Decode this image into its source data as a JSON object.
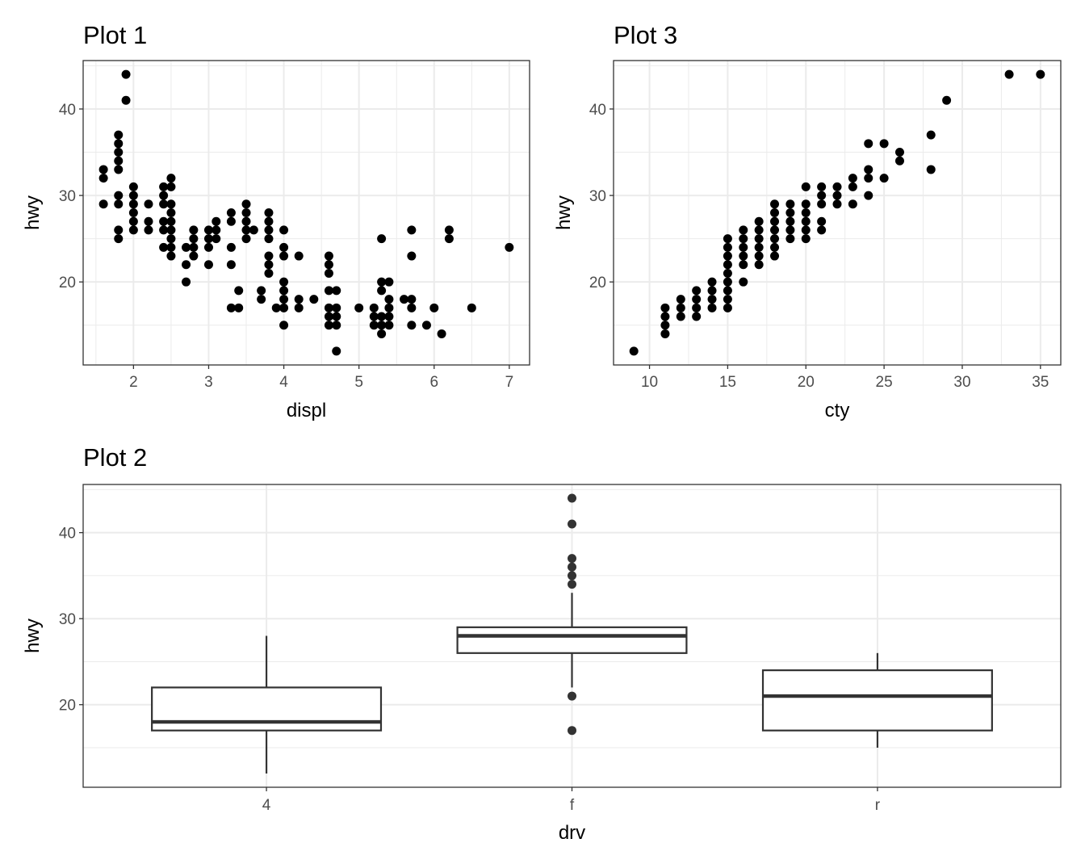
{
  "chart_data": [
    {
      "id": "p1",
      "type": "scatter",
      "title": "Plot 1",
      "xlabel": "displ",
      "ylabel": "hwy",
      "xlim": [
        1.33,
        7.27
      ],
      "ylim": [
        10.4,
        45.6
      ],
      "x_ticks": [
        2,
        3,
        4,
        5,
        6,
        7
      ],
      "y_ticks": [
        20,
        30,
        40
      ],
      "grid": true,
      "points": [
        [
          1.6,
          33
        ],
        [
          1.6,
          32
        ],
        [
          1.6,
          29
        ],
        [
          1.8,
          37
        ],
        [
          1.8,
          36
        ],
        [
          1.8,
          35
        ],
        [
          1.8,
          34
        ],
        [
          1.8,
          33
        ],
        [
          1.8,
          30
        ],
        [
          1.8,
          29
        ],
        [
          1.8,
          26
        ],
        [
          1.8,
          25
        ],
        [
          1.9,
          44
        ],
        [
          1.9,
          41
        ],
        [
          2.0,
          31
        ],
        [
          2.0,
          30
        ],
        [
          2.0,
          29
        ],
        [
          2.0,
          28
        ],
        [
          2.0,
          27
        ],
        [
          2.0,
          26
        ],
        [
          2.2,
          29
        ],
        [
          2.2,
          27
        ],
        [
          2.2,
          26
        ],
        [
          2.4,
          31
        ],
        [
          2.4,
          30
        ],
        [
          2.4,
          29
        ],
        [
          2.4,
          27
        ],
        [
          2.4,
          26
        ],
        [
          2.4,
          24
        ],
        [
          2.5,
          32
        ],
        [
          2.5,
          31
        ],
        [
          2.5,
          29
        ],
        [
          2.5,
          28
        ],
        [
          2.5,
          27
        ],
        [
          2.5,
          26
        ],
        [
          2.5,
          25
        ],
        [
          2.5,
          24
        ],
        [
          2.5,
          23
        ],
        [
          2.7,
          24
        ],
        [
          2.7,
          22
        ],
        [
          2.7,
          20
        ],
        [
          2.8,
          26
        ],
        [
          2.8,
          25
        ],
        [
          2.8,
          24
        ],
        [
          2.8,
          23
        ],
        [
          3.0,
          26
        ],
        [
          3.0,
          25
        ],
        [
          3.0,
          24
        ],
        [
          3.0,
          22
        ],
        [
          3.1,
          27
        ],
        [
          3.1,
          26
        ],
        [
          3.1,
          25
        ],
        [
          3.3,
          28
        ],
        [
          3.3,
          27
        ],
        [
          3.3,
          24
        ],
        [
          3.3,
          22
        ],
        [
          3.3,
          17
        ],
        [
          3.4,
          19
        ],
        [
          3.4,
          17
        ],
        [
          3.5,
          29
        ],
        [
          3.5,
          28
        ],
        [
          3.5,
          27
        ],
        [
          3.5,
          26
        ],
        [
          3.5,
          25
        ],
        [
          3.6,
          26
        ],
        [
          3.7,
          19
        ],
        [
          3.7,
          18
        ],
        [
          3.8,
          28
        ],
        [
          3.8,
          27
        ],
        [
          3.8,
          26
        ],
        [
          3.8,
          25
        ],
        [
          3.8,
          23
        ],
        [
          3.8,
          22
        ],
        [
          3.8,
          21
        ],
        [
          3.9,
          17
        ],
        [
          4.0,
          26
        ],
        [
          4.0,
          24
        ],
        [
          4.0,
          23
        ],
        [
          4.0,
          20
        ],
        [
          4.0,
          19
        ],
        [
          4.0,
          18
        ],
        [
          4.0,
          17
        ],
        [
          4.0,
          15
        ],
        [
          4.2,
          23
        ],
        [
          4.2,
          18
        ],
        [
          4.2,
          17
        ],
        [
          4.4,
          18
        ],
        [
          4.6,
          23
        ],
        [
          4.6,
          22
        ],
        [
          4.6,
          21
        ],
        [
          4.6,
          19
        ],
        [
          4.6,
          17
        ],
        [
          4.6,
          16
        ],
        [
          4.6,
          15
        ],
        [
          4.7,
          19
        ],
        [
          4.7,
          17
        ],
        [
          4.7,
          16
        ],
        [
          4.7,
          15
        ],
        [
          4.7,
          12
        ],
        [
          5.0,
          17
        ],
        [
          5.2,
          17
        ],
        [
          5.2,
          16
        ],
        [
          5.2,
          15
        ],
        [
          5.3,
          25
        ],
        [
          5.3,
          20
        ],
        [
          5.3,
          19
        ],
        [
          5.3,
          16
        ],
        [
          5.3,
          15
        ],
        [
          5.3,
          14
        ],
        [
          5.4,
          20
        ],
        [
          5.4,
          18
        ],
        [
          5.4,
          17
        ],
        [
          5.4,
          16
        ],
        [
          5.4,
          15
        ],
        [
          5.6,
          18
        ],
        [
          5.7,
          26
        ],
        [
          5.7,
          23
        ],
        [
          5.7,
          18
        ],
        [
          5.7,
          17
        ],
        [
          5.7,
          15
        ],
        [
          5.9,
          15
        ],
        [
          6.0,
          17
        ],
        [
          6.1,
          14
        ],
        [
          6.2,
          26
        ],
        [
          6.2,
          25
        ],
        [
          6.5,
          17
        ],
        [
          7.0,
          24
        ]
      ]
    },
    {
      "id": "p3",
      "type": "scatter",
      "title": "Plot 3",
      "xlabel": "cty",
      "ylabel": "hwy",
      "xlim": [
        7.7,
        36.3
      ],
      "ylim": [
        10.4,
        45.6
      ],
      "x_ticks": [
        10,
        15,
        20,
        25,
        30,
        35
      ],
      "y_ticks": [
        20,
        30,
        40
      ],
      "grid": true,
      "points": [
        [
          9,
          12
        ],
        [
          11,
          17
        ],
        [
          11,
          16
        ],
        [
          11,
          15
        ],
        [
          11,
          14
        ],
        [
          12,
          18
        ],
        [
          12,
          17
        ],
        [
          12,
          16
        ],
        [
          13,
          19
        ],
        [
          13,
          18
        ],
        [
          13,
          17
        ],
        [
          13,
          16
        ],
        [
          14,
          20
        ],
        [
          14,
          19
        ],
        [
          14,
          18
        ],
        [
          14,
          17
        ],
        [
          15,
          25
        ],
        [
          15,
          24
        ],
        [
          15,
          23
        ],
        [
          15,
          22
        ],
        [
          15,
          21
        ],
        [
          15,
          20
        ],
        [
          15,
          19
        ],
        [
          15,
          18
        ],
        [
          15,
          17
        ],
        [
          16,
          26
        ],
        [
          16,
          25
        ],
        [
          16,
          24
        ],
        [
          16,
          23
        ],
        [
          16,
          22
        ],
        [
          16,
          20
        ],
        [
          17,
          27
        ],
        [
          17,
          26
        ],
        [
          17,
          25
        ],
        [
          17,
          24
        ],
        [
          17,
          23
        ],
        [
          17,
          22
        ],
        [
          18,
          29
        ],
        [
          18,
          28
        ],
        [
          18,
          27
        ],
        [
          18,
          26
        ],
        [
          18,
          25
        ],
        [
          18,
          24
        ],
        [
          18,
          23
        ],
        [
          19,
          29
        ],
        [
          19,
          28
        ],
        [
          19,
          27
        ],
        [
          19,
          26
        ],
        [
          19,
          25
        ],
        [
          20,
          31
        ],
        [
          20,
          29
        ],
        [
          20,
          28
        ],
        [
          20,
          27
        ],
        [
          20,
          26
        ],
        [
          20,
          25
        ],
        [
          21,
          31
        ],
        [
          21,
          30
        ],
        [
          21,
          29
        ],
        [
          21,
          27
        ],
        [
          21,
          26
        ],
        [
          22,
          31
        ],
        [
          22,
          30
        ],
        [
          22,
          29
        ],
        [
          23,
          32
        ],
        [
          23,
          31
        ],
        [
          23,
          29
        ],
        [
          24,
          36
        ],
        [
          24,
          33
        ],
        [
          24,
          32
        ],
        [
          24,
          30
        ],
        [
          25,
          36
        ],
        [
          25,
          32
        ],
        [
          26,
          35
        ],
        [
          26,
          34
        ],
        [
          28,
          37
        ],
        [
          28,
          33
        ],
        [
          29,
          41
        ],
        [
          33,
          44
        ],
        [
          35,
          44
        ]
      ]
    },
    {
      "id": "p2",
      "type": "boxplot",
      "title": "Plot 2",
      "xlabel": "drv",
      "ylabel": "hwy",
      "categories": [
        "4",
        "f",
        "r"
      ],
      "ylim": [
        10.4,
        45.6
      ],
      "y_ticks": [
        20,
        30,
        40
      ],
      "grid": true,
      "boxes": [
        {
          "category": "4",
          "whisker_low": 12,
          "q1": 17,
          "median": 18,
          "q3": 22,
          "whisker_high": 28,
          "outliers": []
        },
        {
          "category": "f",
          "whisker_low": 22,
          "q1": 26,
          "median": 28,
          "q3": 29,
          "whisker_high": 33,
          "outliers": [
            44,
            41,
            37,
            36,
            35,
            34,
            21,
            17
          ]
        },
        {
          "category": "r",
          "whisker_low": 15,
          "q1": 17,
          "median": 21,
          "q3": 24,
          "whisker_high": 26,
          "outliers": []
        }
      ]
    }
  ]
}
